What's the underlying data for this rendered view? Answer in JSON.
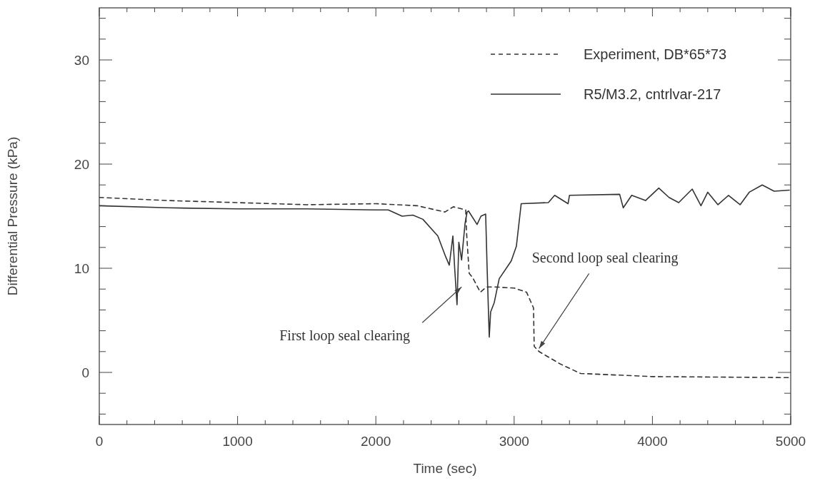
{
  "chart_data": {
    "type": "line",
    "xlabel": "Time (sec)",
    "ylabel": "Differential Pressure (kPa)",
    "xlim": [
      0,
      5000
    ],
    "ylim": [
      -5,
      35
    ],
    "xticks": [
      0,
      {
        "value": 200,
        "label": null
      },
      {
        "value": 400,
        "label": null
      },
      {
        "value": 600,
        "label": null
      },
      {
        "value": 800,
        "label": null
      },
      1000,
      {
        "value": 1200,
        "label": null
      },
      {
        "value": 1400,
        "label": null
      },
      {
        "value": 1600,
        "label": null
      },
      {
        "value": 1800,
        "label": null
      },
      2000,
      {
        "value": 2200,
        "label": null
      },
      {
        "value": 2400,
        "label": null
      },
      {
        "value": 2600,
        "label": null
      },
      {
        "value": 2800,
        "label": null
      },
      3000,
      {
        "value": 3200,
        "label": null
      },
      {
        "value": 3400,
        "label": null
      },
      {
        "value": 3600,
        "label": null
      },
      {
        "value": 3800,
        "label": null
      },
      4000,
      {
        "value": 4200,
        "label": null
      },
      {
        "value": 4400,
        "label": null
      },
      {
        "value": 4600,
        "label": null
      },
      {
        "value": 4800,
        "label": null
      },
      5000
    ],
    "yticks": [
      {
        "value": -4,
        "label": null
      },
      {
        "value": -2,
        "label": null
      },
      0,
      {
        "value": 2,
        "label": null
      },
      {
        "value": 4,
        "label": null
      },
      {
        "value": 6,
        "label": null
      },
      {
        "value": 8,
        "label": null
      },
      10,
      {
        "value": 12,
        "label": null
      },
      {
        "value": 14,
        "label": null
      },
      {
        "value": 16,
        "label": null
      },
      {
        "value": 18,
        "label": null
      },
      20,
      {
        "value": 22,
        "label": null
      },
      {
        "value": 24,
        "label": null
      },
      {
        "value": 26,
        "label": null
      },
      {
        "value": 28,
        "label": null
      },
      30,
      {
        "value": 32,
        "label": null
      },
      {
        "value": 34,
        "label": null
      }
    ],
    "grid": false,
    "legend": "top right",
    "marker": "none",
    "series": [
      {
        "name": "Experiment, DB*65*73",
        "color": "#333333",
        "line_style": "dashed",
        "x": [
          0,
          500,
          1000,
          1500,
          2000,
          2300,
          2500,
          2560,
          2650,
          2655,
          2675,
          2700,
          2755,
          2800,
          2865,
          3000,
          3090,
          3140,
          3145,
          3180,
          3335,
          3480,
          4000,
          5000
        ],
        "values": [
          16.8,
          16.5,
          16.3,
          16.1,
          16.2,
          16.0,
          15.4,
          15.9,
          15.6,
          13.6,
          9.5,
          9.1,
          7.7,
          8.2,
          8.2,
          8.1,
          7.7,
          6.2,
          2.5,
          2.0,
          0.8,
          -0.1,
          -0.4,
          -0.5
        ]
      },
      {
        "name": "R5/M3.2, cntrlvar-217",
        "color": "#333333",
        "line_style": "solid",
        "x": [
          0,
          500,
          1000,
          1500,
          2000,
          2090,
          2190,
          2268,
          2340,
          2448,
          2505,
          2531,
          2557,
          2570,
          2587,
          2600,
          2620,
          2645,
          2660,
          2670,
          2732,
          2760,
          2794,
          2804,
          2820,
          2830,
          2856,
          2892,
          2979,
          3016,
          3051,
          3247,
          3293,
          3390,
          3400,
          3763,
          3789,
          3850,
          3950,
          4046,
          4120,
          4190,
          4288,
          4351,
          4400,
          4474,
          4550,
          4634,
          4700,
          4794,
          4880,
          4990
        ],
        "values": [
          16.0,
          15.8,
          15.7,
          15.7,
          15.6,
          15.6,
          15.0,
          15.1,
          14.7,
          13.1,
          11.1,
          10.3,
          13.1,
          10.0,
          6.5,
          12.5,
          10.8,
          14.3,
          15.4,
          15.5,
          14.2,
          15.0,
          15.2,
          10.3,
          3.4,
          5.8,
          6.7,
          9.0,
          10.7,
          12.1,
          16.2,
          16.3,
          17.0,
          16.2,
          17.0,
          17.1,
          15.8,
          17.0,
          16.5,
          17.7,
          16.8,
          16.3,
          17.6,
          16.0,
          17.3,
          16.1,
          17.0,
          16.1,
          17.3,
          18.0,
          17.4,
          17.5
        ]
      }
    ],
    "annotations": [
      {
        "text": "First loop seal clearing",
        "x": 2620,
        "y": 8.2
      },
      {
        "text": "Second loop seal clearing",
        "x": 3180,
        "y": 2.3
      }
    ]
  }
}
